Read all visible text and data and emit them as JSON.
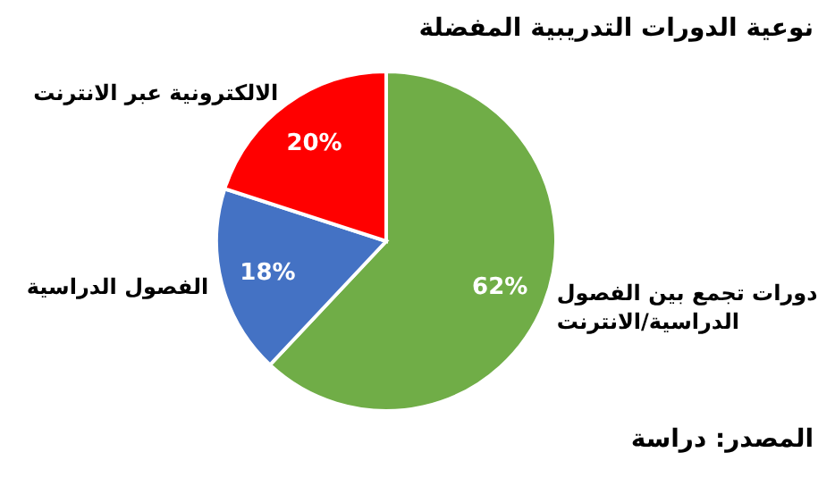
{
  "chart_data": {
    "type": "pie",
    "title": "نوعية الدورات التدريبية المفضلة",
    "categories": [
      "دورات تجمع بين الفصول\nالدراسية/الانترنت",
      "الفصول الدراسية",
      "الالكترونية عبر الانترنت"
    ],
    "values": [
      62,
      18,
      20
    ],
    "value_labels": [
      "62%",
      "18%",
      "20%"
    ],
    "colors": [
      "#70ad47",
      "#4472c4",
      "#ff0000"
    ],
    "annotations": [
      "المصدر: دراسة"
    ]
  }
}
